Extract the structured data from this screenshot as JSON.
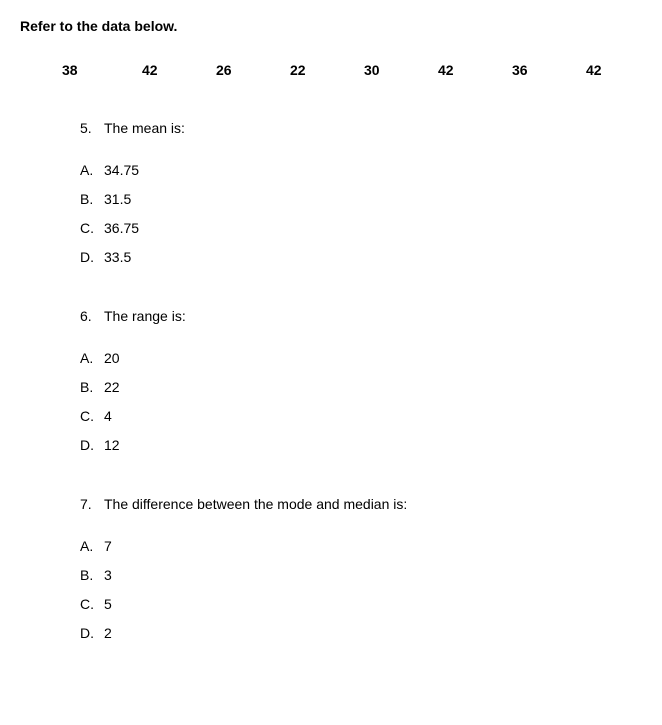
{
  "heading": "Refer to the data below.",
  "data_values": [
    "38",
    "42",
    "26",
    "22",
    "30",
    "42",
    "36",
    "42"
  ],
  "questions": [
    {
      "number": "5.",
      "prompt": "The mean is:",
      "options": [
        {
          "letter": "A.",
          "text": "34.75"
        },
        {
          "letter": "B.",
          "text": "31.5"
        },
        {
          "letter": "C.",
          "text": "36.75"
        },
        {
          "letter": "D.",
          "text": "33.5"
        }
      ]
    },
    {
      "number": "6.",
      "prompt": "The range is:",
      "options": [
        {
          "letter": "A.",
          "text": "20"
        },
        {
          "letter": "B.",
          "text": "22"
        },
        {
          "letter": "C.",
          "text": "4"
        },
        {
          "letter": "D.",
          "text": "12"
        }
      ]
    },
    {
      "number": "7.",
      "prompt": "The difference between the mode and median is:",
      "options": [
        {
          "letter": "A.",
          "text": "7"
        },
        {
          "letter": "B.",
          "text": "3"
        },
        {
          "letter": "C.",
          "text": "5"
        },
        {
          "letter": "D.",
          "text": "2"
        }
      ]
    }
  ]
}
